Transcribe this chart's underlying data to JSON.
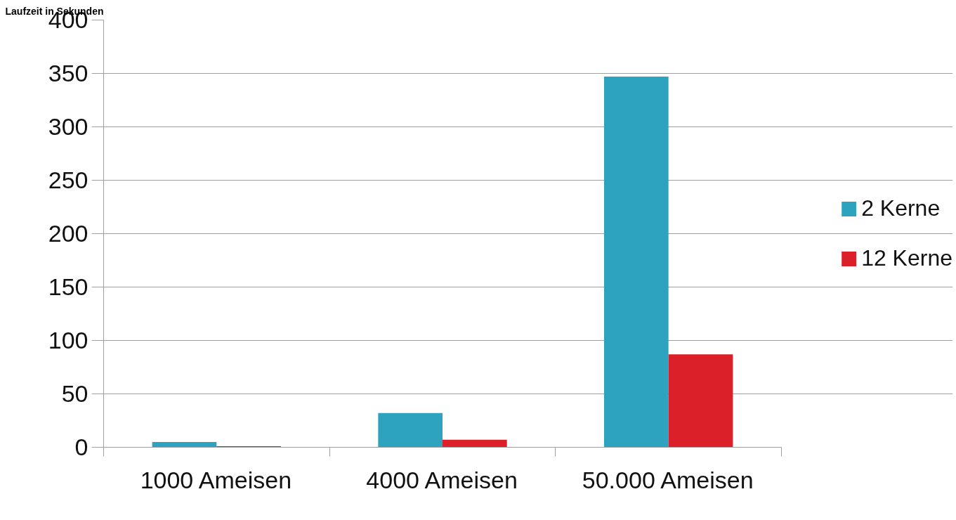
{
  "chart_data": {
    "type": "bar",
    "ylabel": "Laufzeit in Sekunden",
    "categories": [
      "1000 Ameisen",
      "4000 Ameisen",
      "50.000 Ameisen"
    ],
    "series": [
      {
        "name": "2 Kerne",
        "color": "#2ea3bf",
        "values": [
          5,
          32,
          347
        ]
      },
      {
        "name": "12 Kerne",
        "color": "#db2029",
        "values": [
          1,
          7,
          87
        ]
      }
    ],
    "ylim": [
      0,
      400
    ],
    "yticks": [
      0,
      50,
      100,
      150,
      200,
      250,
      300,
      350,
      400
    ],
    "grid": "y",
    "legend": "right"
  }
}
